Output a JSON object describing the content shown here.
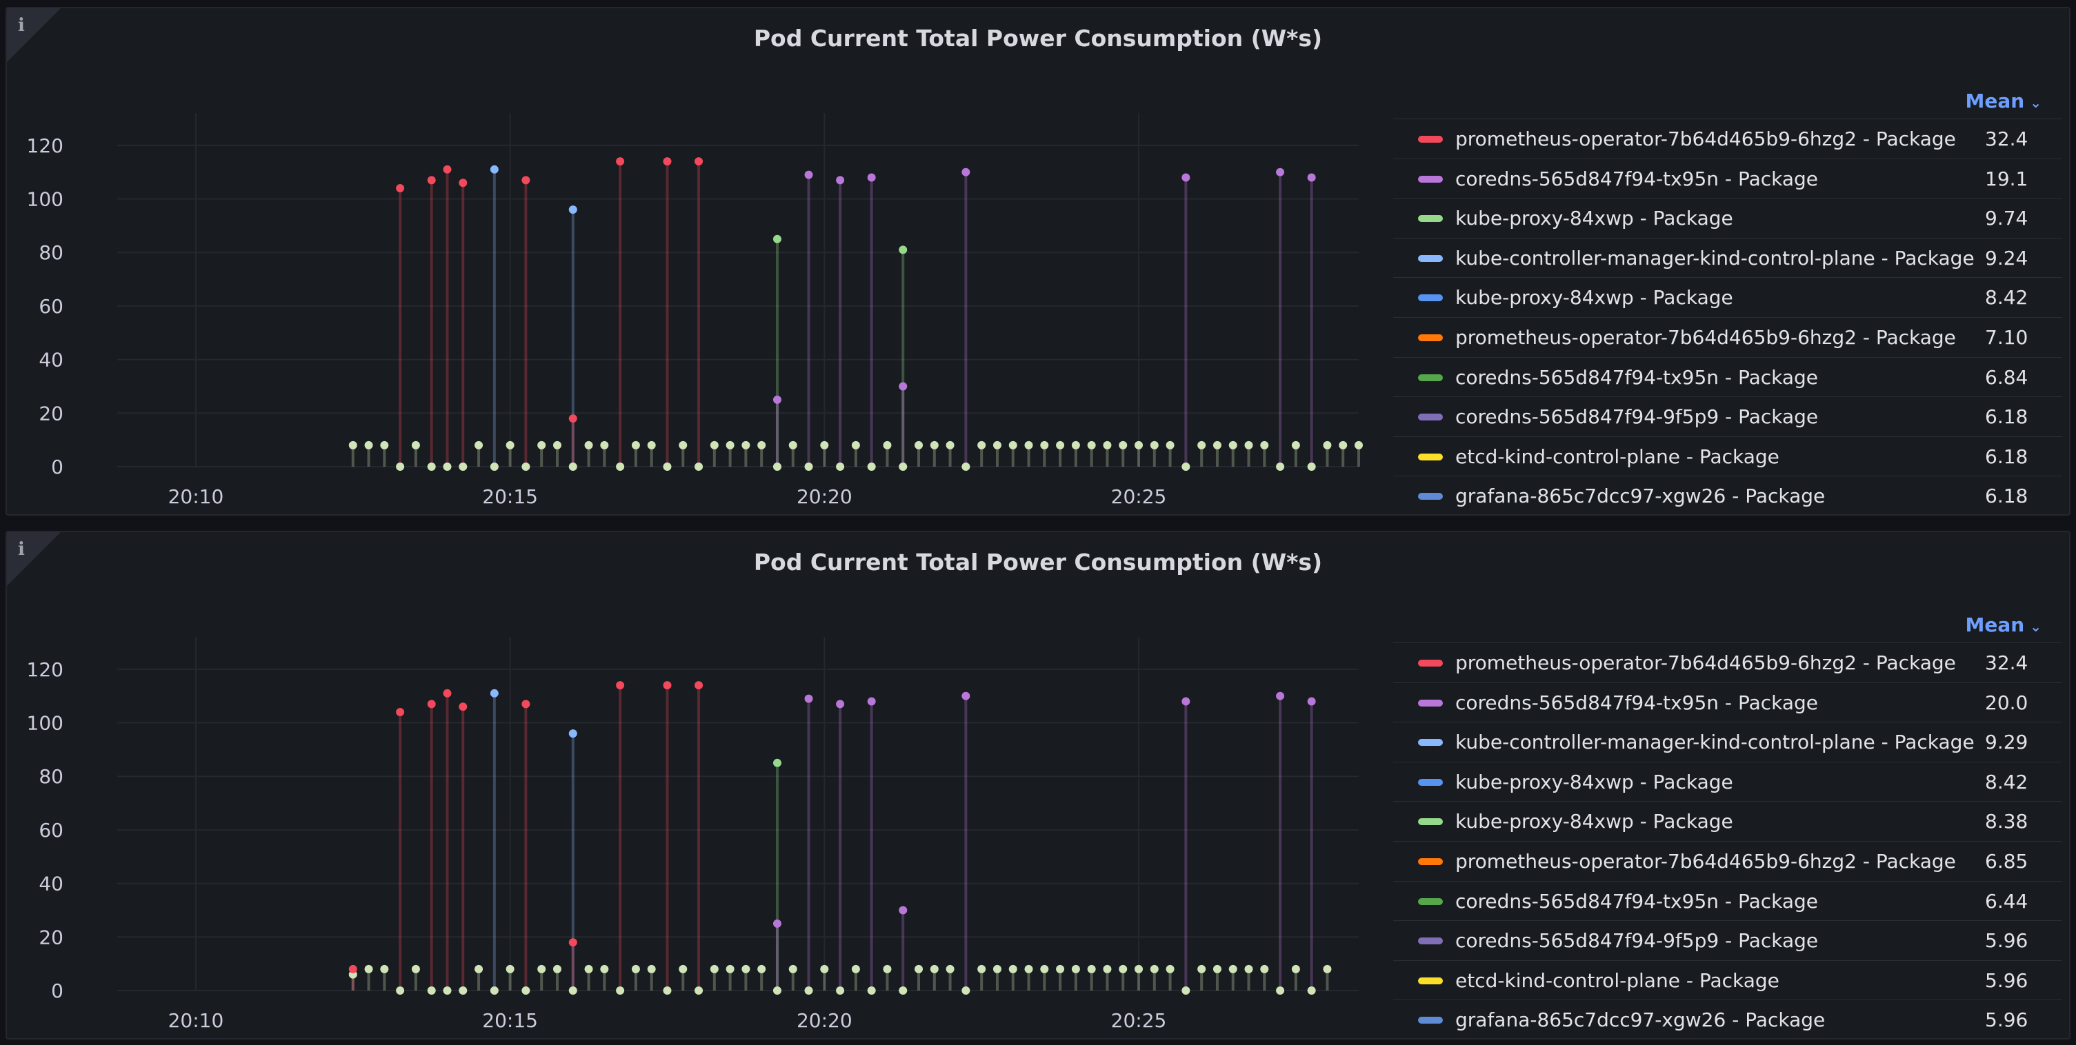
{
  "panels": [
    {
      "title": "Pod Current Total Power Consumption (W*s)",
      "legend_sort_label": "Mean",
      "legend": [
        {
          "name": "prometheus-operator-7b64d465b9-6hzg2 - Package",
          "value": "32.4",
          "color": "#f2495c"
        },
        {
          "name": "coredns-565d847f94-tx95n - Package",
          "value": "19.1",
          "color": "#b877d9"
        },
        {
          "name": "kube-proxy-84xwp - Package",
          "value": "9.74",
          "color": "#96d98d"
        },
        {
          "name": "kube-controller-manager-kind-control-plane - Package",
          "value": "9.24",
          "color": "#8ab8ff"
        },
        {
          "name": "kube-proxy-84xwp - Package",
          "value": "8.42",
          "color": "#5794f2"
        },
        {
          "name": "prometheus-operator-7b64d465b9-6hzg2 - Package",
          "value": "7.10",
          "color": "#ff780a"
        },
        {
          "name": "coredns-565d847f94-tx95n - Package",
          "value": "6.84",
          "color": "#56a64b"
        },
        {
          "name": "coredns-565d847f94-9f5p9 - Package",
          "value": "6.18",
          "color": "#806eb7"
        },
        {
          "name": "etcd-kind-control-plane - Package",
          "value": "6.18",
          "color": "#fade2a"
        },
        {
          "name": "grafana-865c7dcc97-xgw26 - Package",
          "value": "6.18",
          "color": "#5f8bd6"
        }
      ]
    },
    {
      "title": "Pod Current Total Power Consumption (W*s)",
      "legend_sort_label": "Mean",
      "legend": [
        {
          "name": "prometheus-operator-7b64d465b9-6hzg2 - Package",
          "value": "32.4",
          "color": "#f2495c"
        },
        {
          "name": "coredns-565d847f94-tx95n - Package",
          "value": "20.0",
          "color": "#b877d9"
        },
        {
          "name": "kube-controller-manager-kind-control-plane - Package",
          "value": "9.29",
          "color": "#8ab8ff"
        },
        {
          "name": "kube-proxy-84xwp - Package",
          "value": "8.42",
          "color": "#5794f2"
        },
        {
          "name": "kube-proxy-84xwp - Package",
          "value": "8.38",
          "color": "#96d98d"
        },
        {
          "name": "prometheus-operator-7b64d465b9-6hzg2 - Package",
          "value": "6.85",
          "color": "#ff780a"
        },
        {
          "name": "coredns-565d847f94-tx95n - Package",
          "value": "6.44",
          "color": "#56a64b"
        },
        {
          "name": "coredns-565d847f94-9f5p9 - Package",
          "value": "5.96",
          "color": "#806eb7"
        },
        {
          "name": "etcd-kind-control-plane - Package",
          "value": "5.96",
          "color": "#fade2a"
        },
        {
          "name": "grafana-865c7dcc97-xgw26 - Package",
          "value": "5.96",
          "color": "#5f8bd6"
        }
      ]
    }
  ],
  "chart_data": [
    {
      "type": "scatter",
      "title": "Pod Current Total Power Consumption (W*s)",
      "xlabel": "",
      "ylabel": "",
      "ylim": [
        0,
        130
      ],
      "xlim": [
        "20:08:45",
        "20:28:30"
      ],
      "y_ticks": [
        0,
        20,
        40,
        60,
        80,
        100,
        120
      ],
      "x_ticks": [
        "20:10",
        "20:15",
        "20:20",
        "20:25"
      ],
      "grid": true,
      "legend_position": "right",
      "series": [
        {
          "name": "prometheus-operator-7b64d465b9-6hzg2 - Package",
          "color": "#f2495c",
          "points": [
            [
              "20:13:15",
              104
            ],
            [
              "20:13:45",
              107
            ],
            [
              "20:14:00",
              111
            ],
            [
              "20:14:15",
              106
            ],
            [
              "20:15:15",
              107
            ],
            [
              "20:16:00",
              18
            ],
            [
              "20:16:45",
              114
            ],
            [
              "20:17:30",
              114
            ],
            [
              "20:18:00",
              114
            ]
          ]
        },
        {
          "name": "coredns-565d847f94-tx95n - Package",
          "color": "#b877d9",
          "points": [
            [
              "20:19:15",
              25
            ],
            [
              "20:19:45",
              109
            ],
            [
              "20:20:15",
              107
            ],
            [
              "20:20:45",
              108
            ],
            [
              "20:21:15",
              30
            ],
            [
              "20:22:15",
              110
            ],
            [
              "20:25:45",
              108
            ],
            [
              "20:27:15",
              110
            ],
            [
              "20:27:45",
              108
            ]
          ]
        },
        {
          "name": "kube-controller-manager-kind-control-plane - Package",
          "color": "#8ab8ff",
          "points": [
            [
              "20:14:45",
              111
            ],
            [
              "20:16:00",
              96
            ]
          ]
        },
        {
          "name": "kube-proxy-84xwp - Package",
          "color": "#96d98d",
          "points": [
            [
              "20:19:15",
              85
            ],
            [
              "20:21:15",
              81
            ]
          ]
        },
        {
          "name": "kube-proxy-84xwp - Package (baseline)",
          "color": "#d0e4b8",
          "points": [
            [
              "20:12:30",
              8
            ],
            [
              "20:12:45",
              8
            ],
            [
              "20:13:00",
              8
            ],
            [
              "20:13:15",
              0
            ],
            [
              "20:13:30",
              8
            ],
            [
              "20:13:45",
              0
            ],
            [
              "20:14:00",
              0
            ],
            [
              "20:14:15",
              0
            ],
            [
              "20:14:30",
              8
            ],
            [
              "20:14:45",
              0
            ],
            [
              "20:15:00",
              8
            ],
            [
              "20:15:15",
              0
            ],
            [
              "20:15:30",
              8
            ],
            [
              "20:15:45",
              8
            ],
            [
              "20:16:00",
              0
            ],
            [
              "20:16:15",
              8
            ],
            [
              "20:16:30",
              8
            ],
            [
              "20:16:45",
              0
            ],
            [
              "20:17:00",
              8
            ],
            [
              "20:17:15",
              8
            ],
            [
              "20:17:30",
              0
            ],
            [
              "20:17:45",
              8
            ],
            [
              "20:18:00",
              0
            ],
            [
              "20:18:15",
              8
            ],
            [
              "20:18:30",
              8
            ],
            [
              "20:18:45",
              8
            ],
            [
              "20:19:00",
              8
            ],
            [
              "20:19:15",
              0
            ],
            [
              "20:19:30",
              8
            ],
            [
              "20:19:45",
              0
            ],
            [
              "20:20:00",
              8
            ],
            [
              "20:20:15",
              0
            ],
            [
              "20:20:30",
              8
            ],
            [
              "20:20:45",
              0
            ],
            [
              "20:21:00",
              8
            ],
            [
              "20:21:15",
              0
            ],
            [
              "20:21:30",
              8
            ],
            [
              "20:21:45",
              8
            ],
            [
              "20:22:00",
              8
            ],
            [
              "20:22:15",
              0
            ],
            [
              "20:22:30",
              8
            ],
            [
              "20:22:45",
              8
            ],
            [
              "20:23:00",
              8
            ],
            [
              "20:23:15",
              8
            ],
            [
              "20:23:30",
              8
            ],
            [
              "20:23:45",
              8
            ],
            [
              "20:24:00",
              8
            ],
            [
              "20:24:15",
              8
            ],
            [
              "20:24:30",
              8
            ],
            [
              "20:24:45",
              8
            ],
            [
              "20:25:00",
              8
            ],
            [
              "20:25:15",
              8
            ],
            [
              "20:25:30",
              8
            ],
            [
              "20:25:45",
              0
            ],
            [
              "20:26:00",
              8
            ],
            [
              "20:26:15",
              8
            ],
            [
              "20:26:30",
              8
            ],
            [
              "20:26:45",
              8
            ],
            [
              "20:27:00",
              8
            ],
            [
              "20:27:15",
              0
            ],
            [
              "20:27:30",
              8
            ],
            [
              "20:27:45",
              0
            ],
            [
              "20:28:00",
              8
            ],
            [
              "20:28:15",
              8
            ],
            [
              "20:28:30",
              8
            ]
          ]
        }
      ]
    },
    {
      "type": "scatter",
      "title": "Pod Current Total Power Consumption (W*s)",
      "xlabel": "",
      "ylabel": "",
      "ylim": [
        0,
        130
      ],
      "xlim": [
        "20:08:45",
        "20:28:30"
      ],
      "y_ticks": [
        0,
        20,
        40,
        60,
        80,
        100,
        120
      ],
      "x_ticks": [
        "20:10",
        "20:15",
        "20:20",
        "20:25"
      ],
      "grid": true,
      "legend_position": "right",
      "series": [
        {
          "name": "prometheus-operator-7b64d465b9-6hzg2 - Package",
          "color": "#f2495c",
          "points": [
            [
              "20:12:30",
              8
            ],
            [
              "20:13:15",
              104
            ],
            [
              "20:13:45",
              107
            ],
            [
              "20:14:00",
              111
            ],
            [
              "20:14:15",
              106
            ],
            [
              "20:15:15",
              107
            ],
            [
              "20:16:00",
              18
            ],
            [
              "20:16:45",
              114
            ],
            [
              "20:17:30",
              114
            ],
            [
              "20:18:00",
              114
            ]
          ]
        },
        {
          "name": "coredns-565d847f94-tx95n - Package",
          "color": "#b877d9",
          "points": [
            [
              "20:19:15",
              25
            ],
            [
              "20:19:45",
              109
            ],
            [
              "20:20:15",
              107
            ],
            [
              "20:20:45",
              108
            ],
            [
              "20:21:15",
              30
            ],
            [
              "20:22:15",
              110
            ],
            [
              "20:25:45",
              108
            ],
            [
              "20:27:15",
              110
            ],
            [
              "20:27:45",
              108
            ]
          ]
        },
        {
          "name": "kube-controller-manager-kind-control-plane - Package",
          "color": "#8ab8ff",
          "points": [
            [
              "20:14:45",
              111
            ],
            [
              "20:16:00",
              96
            ]
          ]
        },
        {
          "name": "kube-proxy-84xwp - Package",
          "color": "#96d98d",
          "points": [
            [
              "20:19:15",
              85
            ]
          ]
        },
        {
          "name": "kube-proxy-84xwp - Package (baseline)",
          "color": "#d0e4b8",
          "points": [
            [
              "20:12:30",
              6
            ],
            [
              "20:12:45",
              8
            ],
            [
              "20:13:00",
              8
            ],
            [
              "20:13:15",
              0
            ],
            [
              "20:13:30",
              8
            ],
            [
              "20:13:45",
              0
            ],
            [
              "20:14:00",
              0
            ],
            [
              "20:14:15",
              0
            ],
            [
              "20:14:30",
              8
            ],
            [
              "20:14:45",
              0
            ],
            [
              "20:15:00",
              8
            ],
            [
              "20:15:15",
              0
            ],
            [
              "20:15:30",
              8
            ],
            [
              "20:15:45",
              8
            ],
            [
              "20:16:00",
              0
            ],
            [
              "20:16:15",
              8
            ],
            [
              "20:16:30",
              8
            ],
            [
              "20:16:45",
              0
            ],
            [
              "20:17:00",
              8
            ],
            [
              "20:17:15",
              8
            ],
            [
              "20:17:30",
              0
            ],
            [
              "20:17:45",
              8
            ],
            [
              "20:18:00",
              0
            ],
            [
              "20:18:15",
              8
            ],
            [
              "20:18:30",
              8
            ],
            [
              "20:18:45",
              8
            ],
            [
              "20:19:00",
              8
            ],
            [
              "20:19:15",
              0
            ],
            [
              "20:19:30",
              8
            ],
            [
              "20:19:45",
              0
            ],
            [
              "20:20:00",
              8
            ],
            [
              "20:20:15",
              0
            ],
            [
              "20:20:30",
              8
            ],
            [
              "20:20:45",
              0
            ],
            [
              "20:21:00",
              8
            ],
            [
              "20:21:15",
              0
            ],
            [
              "20:21:30",
              8
            ],
            [
              "20:21:45",
              8
            ],
            [
              "20:22:00",
              8
            ],
            [
              "20:22:15",
              0
            ],
            [
              "20:22:30",
              8
            ],
            [
              "20:22:45",
              8
            ],
            [
              "20:23:00",
              8
            ],
            [
              "20:23:15",
              8
            ],
            [
              "20:23:30",
              8
            ],
            [
              "20:23:45",
              8
            ],
            [
              "20:24:00",
              8
            ],
            [
              "20:24:15",
              8
            ],
            [
              "20:24:30",
              8
            ],
            [
              "20:24:45",
              8
            ],
            [
              "20:25:00",
              8
            ],
            [
              "20:25:15",
              8
            ],
            [
              "20:25:30",
              8
            ],
            [
              "20:25:45",
              0
            ],
            [
              "20:26:00",
              8
            ],
            [
              "20:26:15",
              8
            ],
            [
              "20:26:30",
              8
            ],
            [
              "20:26:45",
              8
            ],
            [
              "20:27:00",
              8
            ],
            [
              "20:27:15",
              0
            ],
            [
              "20:27:30",
              8
            ],
            [
              "20:27:45",
              0
            ],
            [
              "20:28:00",
              8
            ]
          ]
        }
      ]
    }
  ]
}
